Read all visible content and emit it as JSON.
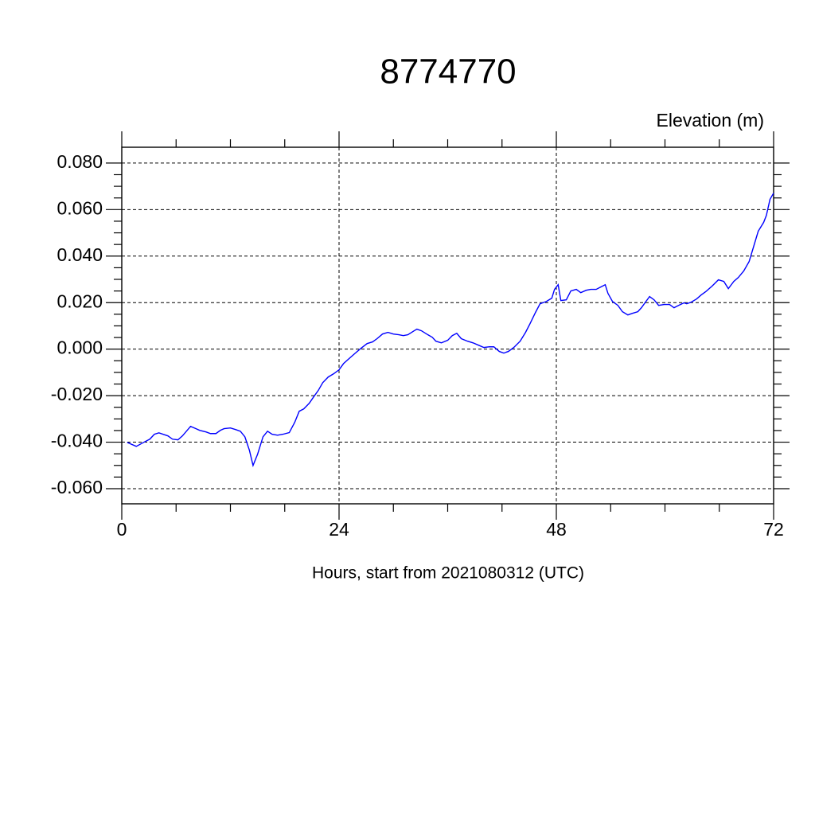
{
  "chart_data": {
    "type": "line",
    "title": "8774770",
    "subtitle": "Elevation (m)",
    "x_label": "Hours, start from 2021080312 (UTC)",
    "xlim": [
      0,
      72
    ],
    "xticks": [
      0,
      24,
      48,
      72
    ],
    "ylim": [
      -0.0665,
      0.0868
    ],
    "yticks": [
      {
        "value": -0.06,
        "label": "-0.060"
      },
      {
        "value": -0.04,
        "label": "-0.040"
      },
      {
        "value": -0.02,
        "label": "-0.020"
      },
      {
        "value": 0,
        "label": "0.000"
      },
      {
        "value": 0.02,
        "label": "0.020"
      },
      {
        "value": 0.04,
        "label": "0.040"
      },
      {
        "value": 0.06,
        "label": "0.060"
      },
      {
        "value": 0.08,
        "label": "0.080"
      }
    ],
    "grid": true,
    "x": [
      0.6,
      1.6,
      2.6,
      3.1,
      3.6,
      4.1,
      5.1,
      5.6,
      6.2,
      6.7,
      7.6,
      8.2,
      8.6,
      9.3,
      9.8,
      10.4,
      10.9,
      11.3,
      12.0,
      12.6,
      13.1,
      13.6,
      14.1,
      14.5,
      15.0,
      15.6,
      16.1,
      16.6,
      17.2,
      17.8,
      18.5,
      19.1,
      19.6,
      20.1,
      20.7,
      21.2,
      21.7,
      22.2,
      22.8,
      23.4,
      24.0,
      24.5,
      25.1,
      25.8,
      26.4,
      27.1,
      27.7,
      28.2,
      28.8,
      29.4,
      30.0,
      30.6,
      31.1,
      31.6,
      32.3,
      32.6,
      33.1,
      33.8,
      34.3,
      34.7,
      35.3,
      36.0,
      36.5,
      37.0,
      37.5,
      38.2,
      38.8,
      39.4,
      40.0,
      40.6,
      41.1,
      41.7,
      42.2,
      42.7,
      43.3,
      44.0,
      44.6,
      45.1,
      45.7,
      46.2,
      46.9,
      47.5,
      47.8,
      48.2,
      48.5,
      49.1,
      49.6,
      50.2,
      50.7,
      51.3,
      51.8,
      52.4,
      52.9,
      53.4,
      53.7,
      54.2,
      54.8,
      55.3,
      55.9,
      56.4,
      57.0,
      57.4,
      57.9,
      58.3,
      58.8,
      59.3,
      59.9,
      60.5,
      61.0,
      61.5,
      62.1,
      62.4,
      62.9,
      63.5,
      64.0,
      64.5,
      65.2,
      65.9,
      66.5,
      67.0,
      67.6,
      68.1,
      68.7,
      69.3,
      69.8,
      70.3,
      70.9,
      71.2,
      71.6,
      72.0
    ],
    "series": [
      {
        "name": "Elevation",
        "color": "#0000ff",
        "values": [
          -0.0401,
          -0.0418,
          -0.0397,
          -0.0387,
          -0.0366,
          -0.036,
          -0.0373,
          -0.0387,
          -0.039,
          -0.0373,
          -0.0332,
          -0.0342,
          -0.0349,
          -0.0356,
          -0.0363,
          -0.0363,
          -0.0349,
          -0.0342,
          -0.0339,
          -0.0346,
          -0.0353,
          -0.0377,
          -0.0435,
          -0.05,
          -0.0452,
          -0.0377,
          -0.0353,
          -0.0366,
          -0.037,
          -0.0366,
          -0.0359,
          -0.0315,
          -0.0267,
          -0.0257,
          -0.0233,
          -0.0205,
          -0.0178,
          -0.0144,
          -0.012,
          -0.0106,
          -0.0089,
          -0.0062,
          -0.0041,
          -0.0017,
          0.0003,
          0.0024,
          0.0031,
          0.0045,
          0.0065,
          0.0072,
          0.0065,
          0.0062,
          0.0058,
          0.0062,
          0.0079,
          0.0086,
          0.0079,
          0.0062,
          0.0051,
          0.0034,
          0.0027,
          0.0038,
          0.0058,
          0.0068,
          0.0045,
          0.0034,
          0.0027,
          0.0017,
          0.0007,
          0.001,
          0.001,
          -0.001,
          -0.0017,
          -0.001,
          0.0007,
          0.0034,
          0.0072,
          0.011,
          0.0158,
          0.0195,
          0.0205,
          0.0219,
          0.0257,
          0.0277,
          0.0209,
          0.0212,
          0.025,
          0.0257,
          0.0243,
          0.0253,
          0.0257,
          0.0257,
          0.0267,
          0.0277,
          0.024,
          0.0205,
          0.0188,
          0.0161,
          0.0147,
          0.0154,
          0.0161,
          0.0178,
          0.0205,
          0.0226,
          0.0212,
          0.0188,
          0.0192,
          0.0192,
          0.0178,
          0.0188,
          0.0199,
          0.0195,
          0.0202,
          0.0216,
          0.0233,
          0.0247,
          0.0271,
          0.0298,
          0.0291,
          0.026,
          0.0291,
          0.0308,
          0.0336,
          0.0377,
          0.0442,
          0.0507,
          0.0545,
          0.0575,
          0.0644,
          0.0671
        ]
      }
    ]
  }
}
